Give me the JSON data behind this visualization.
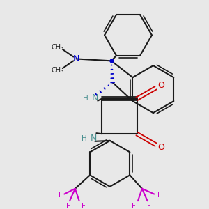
{
  "background_color": "#e8e8e8",
  "bond_color": "#1a1a1a",
  "nitrogen_color": "#4a9090",
  "oxygen_color": "#cc0000",
  "fluorine_color": "#cc00cc",
  "stereo_bond_color": "#0000cc",
  "figsize": [
    3.0,
    3.0
  ],
  "dpi": 100,
  "xlim": [
    0,
    300
  ],
  "ylim": [
    0,
    300
  ]
}
